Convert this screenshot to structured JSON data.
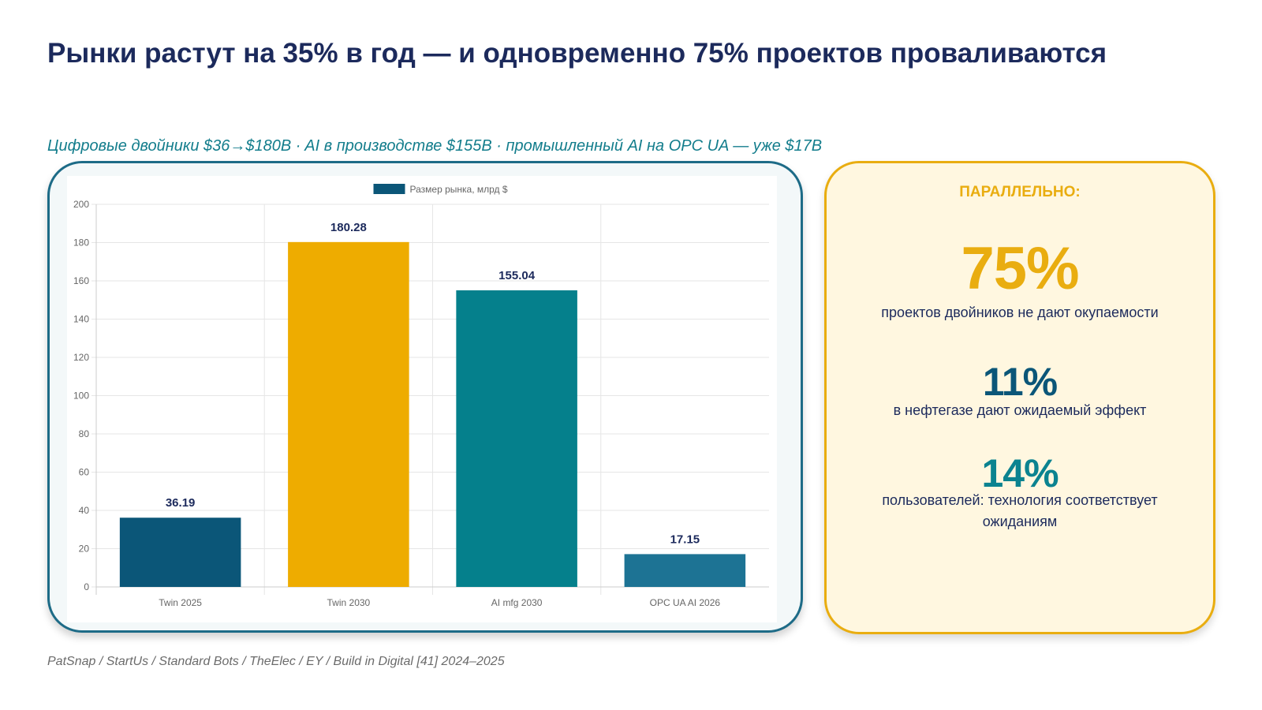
{
  "title": "Рынки растут на 35% в год — и одновременно 75% проектов проваливаются",
  "subtitle": "Цифровые двойники $36→$180B · AI в производстве $155B · промышленный AI на OPC UA — уже $17B",
  "source": "PatSnap / StartUs / Standard Bots / TheElec / EY / Build in Digital [41] 2024–2025",
  "stats": {
    "heading": "ПАРАЛЛЕЛЬНО:",
    "items": [
      {
        "value": "75%",
        "desc": "проектов двойников не дают окупаемости",
        "color": "#e9ad10"
      },
      {
        "value": "11%",
        "desc": "в нефтегазе дают ожидаемый эффект",
        "color": "#0b5678"
      },
      {
        "value": "14%",
        "desc": "пользователей: технология соответствует ожиданиям",
        "color": "#0b8390"
      }
    ]
  },
  "chart_data": {
    "type": "bar",
    "categories": [
      "Twin 2025",
      "Twin 2030",
      "AI mfg 2030",
      "OPC UA AI 2026"
    ],
    "series": [
      {
        "name": "Размер рынка, млрд $",
        "values": [
          36.19,
          180.28,
          155.04,
          17.15
        ]
      }
    ],
    "value_labels": [
      "36.19",
      "180.28",
      "155.04",
      "17.15"
    ],
    "bar_colors": [
      "#0b5678",
      "#eeac00",
      "#05808c",
      "#1d7394"
    ],
    "legend_color": "#0b5678",
    "ylim": [
      0,
      200
    ],
    "yticks": [
      0,
      20,
      40,
      60,
      80,
      100,
      120,
      140,
      160,
      180,
      200
    ],
    "grid": true,
    "legend_position": "top"
  }
}
